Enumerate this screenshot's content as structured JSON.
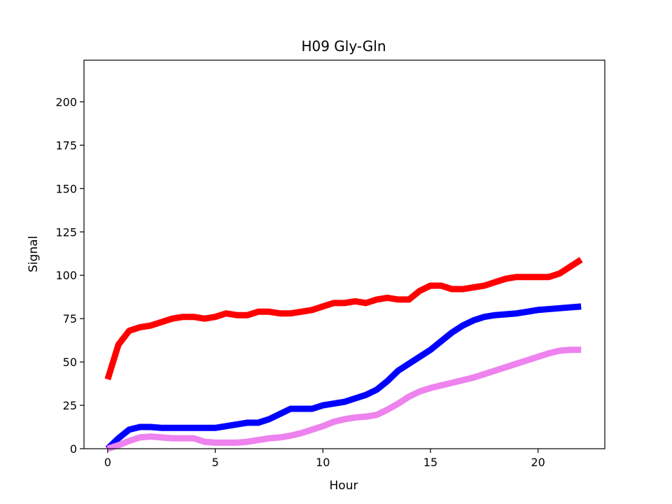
{
  "chart_data": {
    "type": "line",
    "title": "H09 Gly-Gln",
    "xlabel": "Hour",
    "ylabel": "Signal",
    "xlim": [
      -1.1,
      23.1
    ],
    "ylim": [
      0,
      224
    ],
    "xticks": [
      0,
      5,
      10,
      15,
      20
    ],
    "yticks": [
      0,
      25,
      50,
      75,
      100,
      125,
      150,
      175,
      200
    ],
    "grid": false,
    "legend": "none",
    "x": [
      0,
      0.5,
      1,
      1.5,
      2,
      2.5,
      3,
      3.5,
      4,
      4.5,
      5,
      5.5,
      6,
      6.5,
      7,
      7.5,
      8,
      8.5,
      9,
      9.5,
      10,
      10.5,
      11,
      11.5,
      12,
      12.5,
      13,
      13.5,
      14,
      14.5,
      15,
      15.5,
      16,
      16.5,
      17,
      17.5,
      18,
      18.5,
      19,
      19.5,
      20,
      20.5,
      21,
      21.5,
      22
    ],
    "series": [
      {
        "color": "#ff0000",
        "values": [
          40,
          60,
          68,
          70,
          71,
          73,
          75,
          76,
          76,
          75,
          76,
          78,
          77,
          77,
          79,
          79,
          78,
          78,
          79,
          80,
          82,
          84,
          84,
          85,
          84,
          86,
          87,
          86,
          86,
          91,
          94,
          94,
          92,
          92,
          93,
          94,
          96,
          98,
          99,
          99,
          99,
          99,
          101,
          105,
          109
        ]
      },
      {
        "color": "#0000ff",
        "values": [
          0,
          6,
          11,
          12.5,
          12.5,
          12,
          12,
          12,
          12,
          12,
          12,
          13,
          14,
          15,
          15,
          17,
          20,
          23,
          23,
          23,
          25,
          26,
          27,
          29,
          31,
          34,
          39,
          45,
          49,
          53,
          57,
          62,
          67,
          71,
          74,
          76,
          77,
          77.5,
          78,
          79,
          80,
          80.5,
          81,
          81.5,
          82
        ]
      },
      {
        "color": "#ee82ee",
        "values": [
          0,
          2,
          4.5,
          6.5,
          7,
          6.5,
          6,
          6,
          6,
          4,
          3.5,
          3.5,
          3.5,
          4,
          5,
          6,
          6.5,
          7.5,
          9,
          11,
          13,
          15.5,
          17,
          18,
          18.5,
          19.5,
          22.5,
          26,
          30,
          33,
          35,
          36.5,
          38,
          39.5,
          41,
          43,
          45,
          47,
          49,
          51,
          53,
          55,
          56.5,
          57,
          57
        ]
      }
    ]
  }
}
